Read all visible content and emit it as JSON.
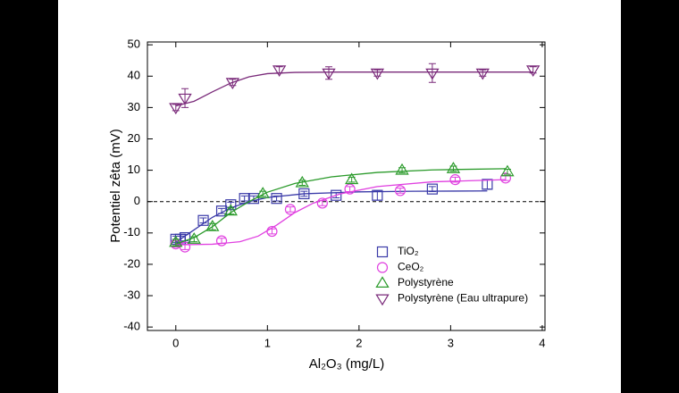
{
  "chart_data": {
    "type": "scatter",
    "xlabel": "Al₂O₃ (mg/L)",
    "ylabel": "Potentiel zêta (mV)",
    "xlim": [
      -0.31,
      4.03
    ],
    "xticks": [
      0,
      1,
      2,
      3,
      4
    ],
    "ylim": [
      -41.1,
      50.9
    ],
    "yticks": [
      -40,
      -30,
      -20,
      -10,
      0,
      10,
      20,
      30,
      40,
      50
    ],
    "reference_line": 0,
    "legend": "lower right",
    "series": [
      {
        "name": "TiO₂",
        "color": "#3a3aa8",
        "marker": "square",
        "x": [
          0,
          0.05,
          0.1,
          0.3,
          0.5,
          0.6,
          0.75,
          0.85,
          1.1,
          1.4,
          1.75,
          2.2,
          2.8,
          3.4
        ],
        "values": [
          -12,
          -12,
          -11.5,
          -6,
          -3,
          -1,
          1,
          1,
          1,
          2.5,
          2,
          2,
          4,
          5.5
        ],
        "errors": [
          1,
          1,
          1,
          0.8,
          0.8,
          0.8,
          0.8,
          0.8,
          0.8,
          0.8,
          0.8,
          1.5,
          0.8,
          1.5
        ],
        "fit": {
          "x": [
            0,
            0.2,
            0.4,
            0.6,
            0.8,
            1.0,
            1.4,
            2,
            2.6,
            3.4
          ],
          "values": [
            -13,
            -9,
            -5,
            -2,
            0,
            1.3,
            2.5,
            3.1,
            3.3,
            3.4
          ]
        }
      },
      {
        "name": "CeO₂",
        "color": "#e040e0",
        "marker": "circle",
        "x": [
          0,
          0.1,
          0.5,
          1.05,
          1.25,
          1.6,
          1.9,
          2.45,
          3.05,
          3.6
        ],
        "values": [
          -13.5,
          -14.5,
          -12.5,
          -9.5,
          -2.5,
          -0.5,
          4,
          3.5,
          7,
          7.5
        ],
        "errors": [
          1,
          0.8,
          0.8,
          0.8,
          0.8,
          0.8,
          0.8,
          0.8,
          0.8,
          0.8
        ],
        "fit": {
          "x": [
            0,
            0.4,
            0.7,
            0.9,
            1.1,
            1.3,
            1.5,
            1.8,
            2.2,
            2.8,
            3.6
          ],
          "values": [
            -13.8,
            -13.6,
            -12.8,
            -11,
            -7.5,
            -3.5,
            -0.5,
            2.5,
            4.8,
            6.3,
            7
          ]
        }
      },
      {
        "name": "Polystyrène",
        "color": "#2a9a2a",
        "marker": "triangle-up",
        "x": [
          0,
          0.2,
          0.4,
          0.6,
          0.95,
          1.38,
          1.92,
          2.47,
          3.03,
          3.62
        ],
        "values": [
          -13,
          -12,
          -8,
          -3,
          2.5,
          6,
          7,
          10,
          10.5,
          9.5
        ],
        "errors": [
          1,
          0.8,
          1,
          1,
          0.8,
          0.8,
          0.8,
          0.8,
          0.8,
          0.8
        ],
        "fit": {
          "x": [
            0,
            0.2,
            0.4,
            0.6,
            0.8,
            1.0,
            1.3,
            1.7,
            2.2,
            2.8,
            3.6
          ],
          "values": [
            -13.5,
            -11.5,
            -8,
            -3.5,
            0,
            3,
            5.8,
            7.9,
            9.3,
            10.1,
            10.5
          ]
        }
      },
      {
        "name": "Polystyrène (Eau ultrapure)",
        "color": "#7a2a7a",
        "marker": "triangle-down",
        "x": [
          0,
          0.1,
          0.62,
          1.13,
          1.67,
          2.2,
          2.8,
          3.35,
          3.9
        ],
        "values": [
          30,
          33,
          38,
          42,
          41,
          41,
          41,
          41,
          42
        ],
        "errors": [
          1,
          3,
          1,
          1,
          2,
          1,
          3,
          1,
          1
        ],
        "fit": {
          "x": [
            0,
            0.2,
            0.4,
            0.6,
            0.8,
            1.0,
            1.3,
            1.8,
            2.5,
            3.9
          ],
          "values": [
            30.5,
            32,
            35,
            37.8,
            39.8,
            40.8,
            41.2,
            41.3,
            41.3,
            41.3
          ]
        }
      }
    ]
  }
}
